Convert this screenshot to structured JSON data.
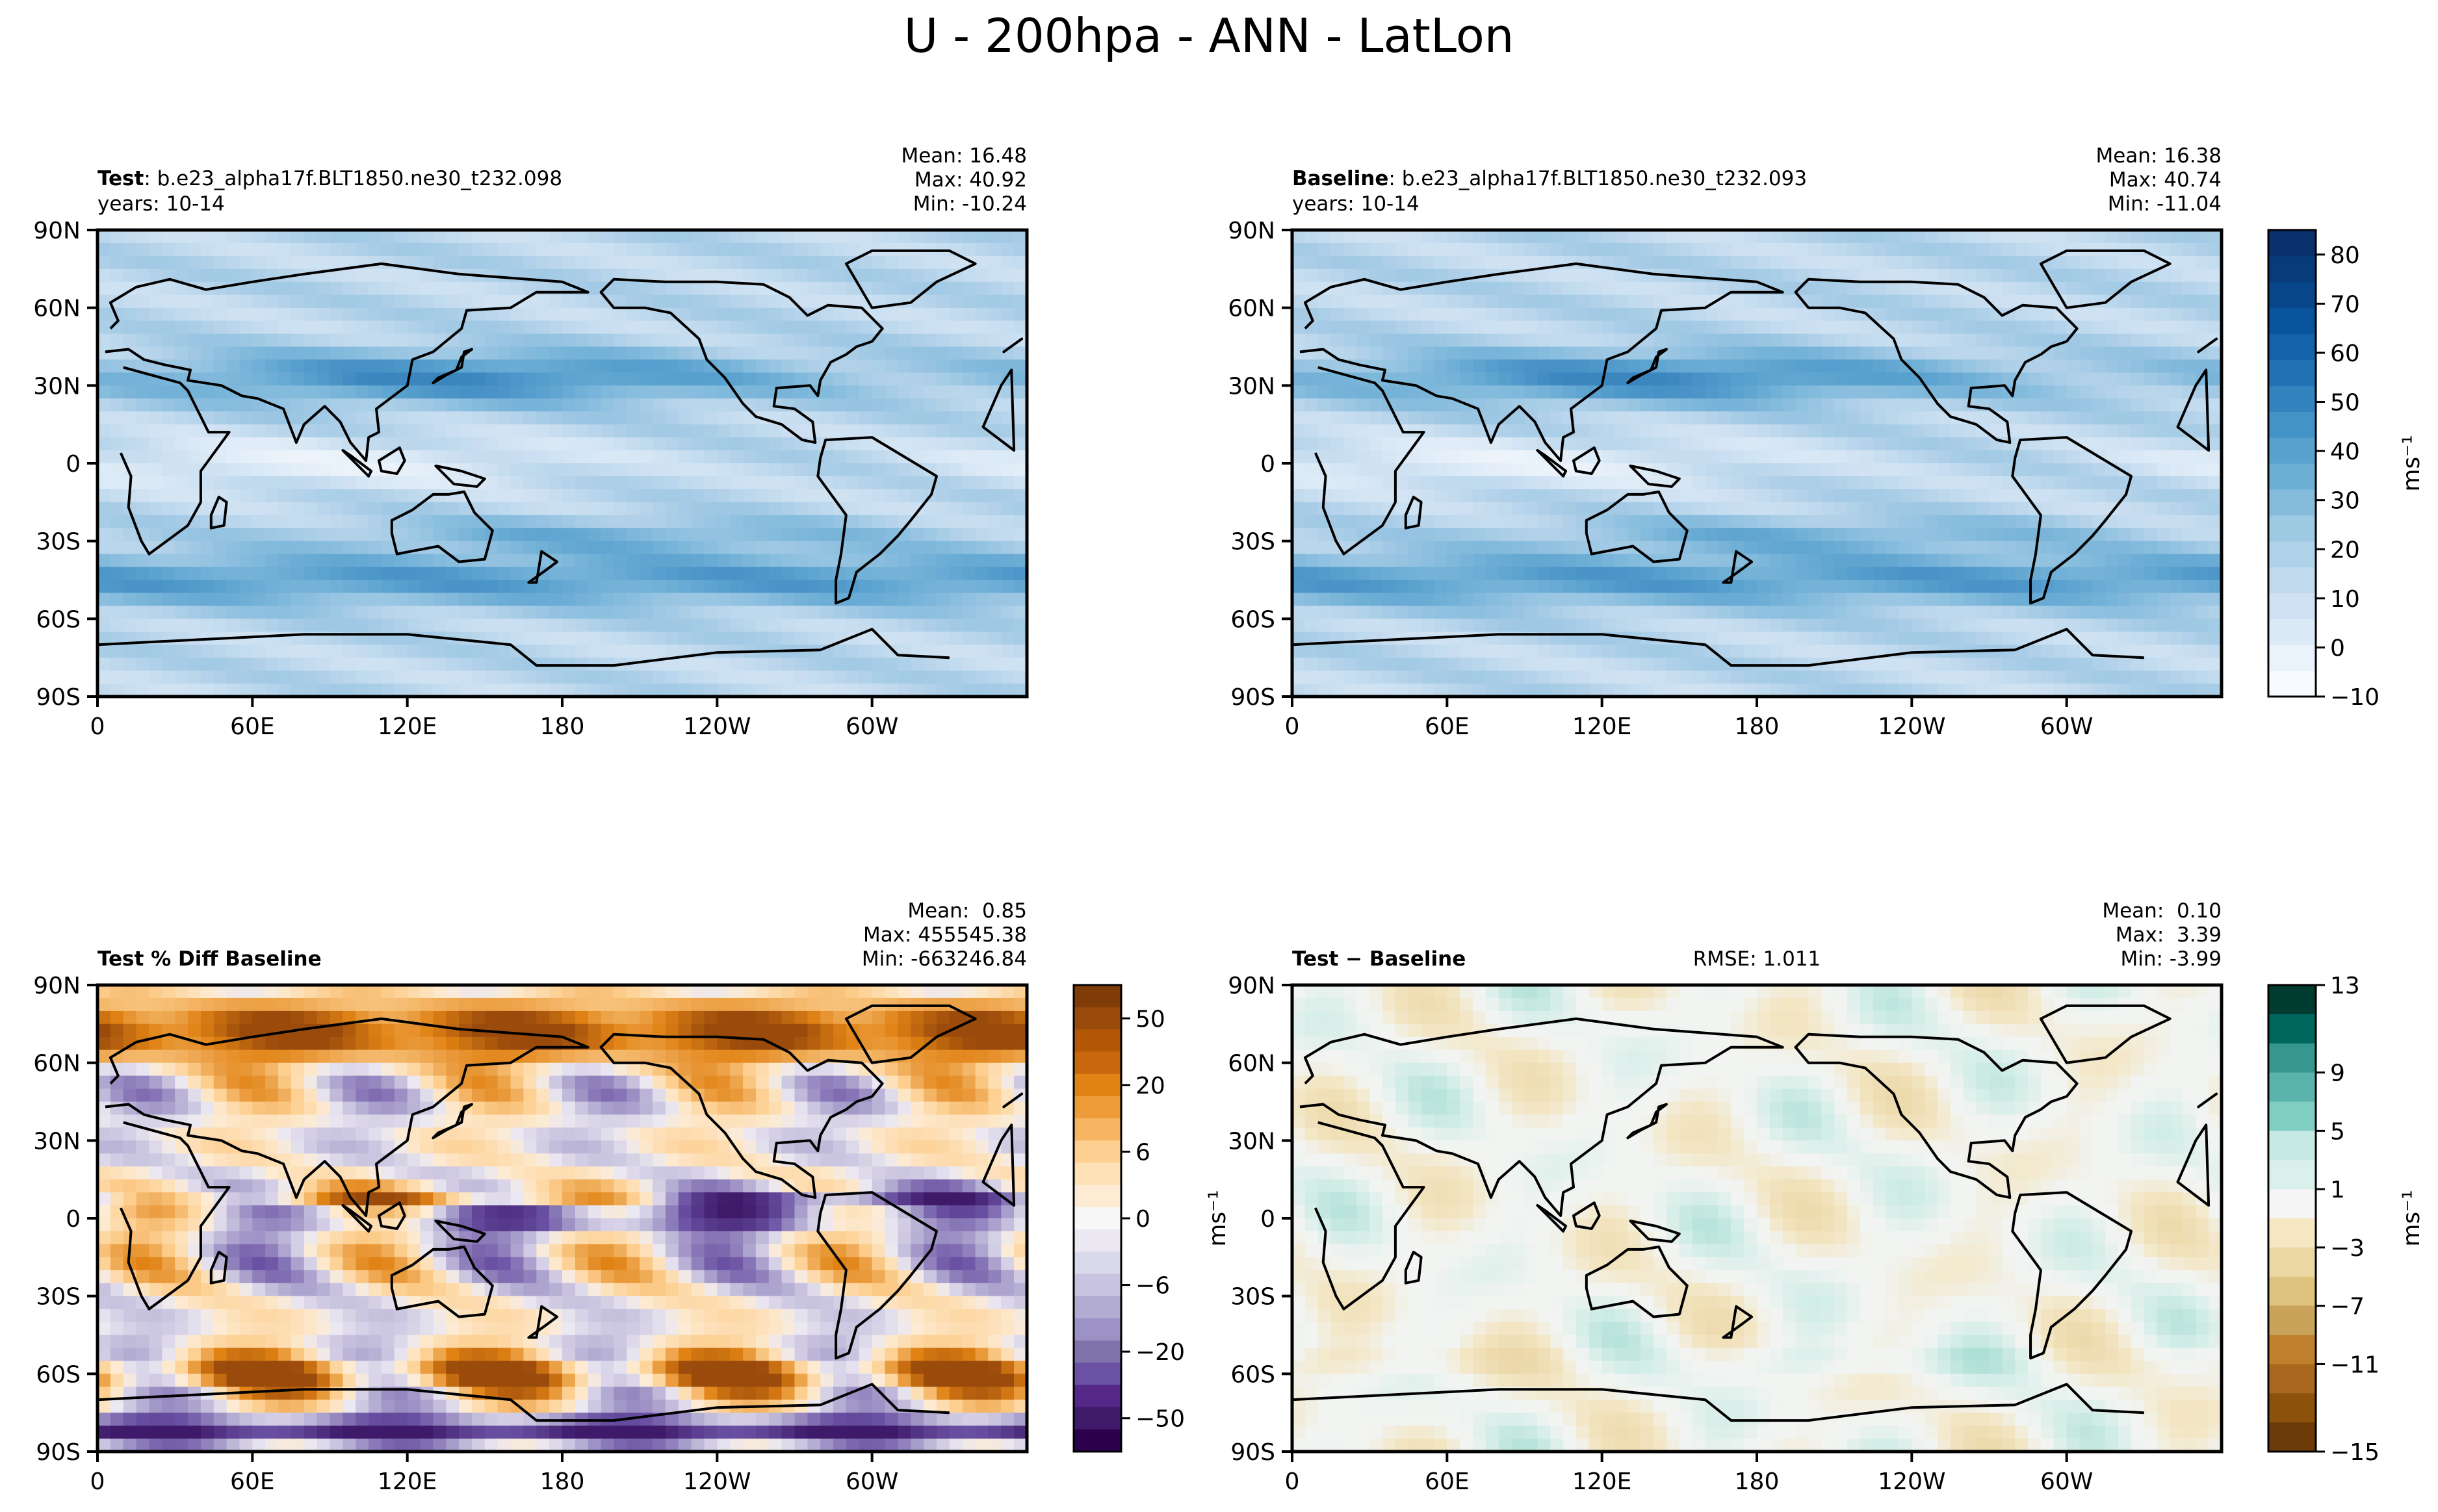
{
  "figure": {
    "title": "U - 200hpa - ANN - LatLon"
  },
  "chart_data": [
    {
      "type": "heatmap",
      "id": "test",
      "label_bold": "Test",
      "label_sep": ": ",
      "label_text": "b.e23_alpha17f.BLT1850.ne30_t232.098",
      "years": "years: 10-14",
      "stats": [
        "Mean: 16.48",
        "Max: 40.92",
        "Min: -10.24"
      ],
      "x_ticks": [
        "0",
        "60E",
        "120E",
        "180",
        "120W",
        "60W"
      ],
      "y_ticks": [
        "90N",
        "60N",
        "30N",
        "0",
        "30S",
        "60S",
        "90S"
      ],
      "xlim": [
        0,
        360
      ],
      "ylim": [
        -90,
        90
      ],
      "colormap": "Blues",
      "field": "wind"
    },
    {
      "type": "heatmap",
      "id": "baseline",
      "label_bold": "Baseline",
      "label_sep": ": ",
      "label_text": "b.e23_alpha17f.BLT1850.ne30_t232.093",
      "years": "years: 10-14",
      "stats": [
        "Mean: 16.38",
        "Max: 40.74",
        "Min: -11.04"
      ],
      "x_ticks": [
        "0",
        "60E",
        "120E",
        "180",
        "120W",
        "60W"
      ],
      "y_ticks": [
        "90N",
        "60N",
        "30N",
        "0",
        "30S",
        "60S",
        "90S"
      ],
      "xlim": [
        0,
        360
      ],
      "ylim": [
        -90,
        90
      ],
      "colormap": "Blues",
      "field": "wind"
    },
    {
      "type": "heatmap",
      "id": "pctdiff",
      "label_bold": "Test % Diff Baseline",
      "label_sep": "",
      "label_text": "",
      "stats": [
        "Mean:  0.85",
        "Max: 455545.38",
        "Min: -663246.84"
      ],
      "x_ticks": [
        "0",
        "60E",
        "120E",
        "180",
        "120W",
        "60W"
      ],
      "y_ticks": [
        "90N",
        "60N",
        "30N",
        "0",
        "30S",
        "60S",
        "90S"
      ],
      "xlim": [
        0,
        360
      ],
      "ylim": [
        -90,
        90
      ],
      "colormap": "PuOr",
      "field": "pct"
    },
    {
      "type": "heatmap",
      "id": "diff",
      "label_bold": "Test − Baseline",
      "label_sep": "",
      "label_text": "",
      "rmse": "RMSE: 1.011",
      "stats": [
        "Mean:  0.10",
        "Max:  3.39",
        "Min: -3.99"
      ],
      "x_ticks": [
        "0",
        "60E",
        "120E",
        "180",
        "120W",
        "60W"
      ],
      "y_ticks": [
        "90N",
        "60N",
        "30N",
        "0",
        "30S",
        "60S",
        "90S"
      ],
      "xlim": [
        0,
        360
      ],
      "ylim": [
        -90,
        90
      ],
      "colormap": "BrBG",
      "field": "diff"
    }
  ],
  "colorbars": [
    {
      "id": "cb-main",
      "unit_label": "ms⁻¹",
      "range": [
        -10,
        85
      ],
      "tick_values": [
        -10,
        0,
        10,
        20,
        30,
        40,
        50,
        60,
        70,
        80
      ],
      "tick_labels": [
        "−10",
        "0",
        "10",
        "20",
        "30",
        "40",
        "50",
        "60",
        "70",
        "80"
      ],
      "colors": [
        "#f7fbff",
        "#eaf2fb",
        "#dce9f6",
        "#cfe1f2",
        "#c1d9ed",
        "#b0d2e8",
        "#9dc9e2",
        "#85bcdc",
        "#6daed5",
        "#59a1cf",
        "#4493c7",
        "#3283be",
        "#2271b5",
        "#1563aa",
        "#0a549e",
        "#08468a",
        "#083b7a",
        "#08306b"
      ]
    },
    {
      "id": "cb-pct",
      "unit_label": "ms⁻¹",
      "tick_labels": [
        "50",
        "20",
        "6",
        "0",
        "−6",
        "−20",
        "−50"
      ],
      "colors": [
        "#7f3b08",
        "#9a4a0b",
        "#b35806",
        "#c9670f",
        "#e08214",
        "#ee9b3a",
        "#f7b563",
        "#fdcf90",
        "#fee0b6",
        "#fdebd3",
        "#f7f7f7",
        "#ebe8f2",
        "#d8daeb",
        "#c7c3e0",
        "#b2abd2",
        "#9d92c5",
        "#8073ac",
        "#6a51a3",
        "#542788",
        "#3f1a6b",
        "#2d004b"
      ]
    },
    {
      "id": "cb-diff",
      "unit_label": "ms⁻¹",
      "tick_labels": [
        "13",
        "9",
        "5",
        "1",
        "−3",
        "−7",
        "−11",
        "−15"
      ],
      "colors": [
        "#003c30",
        "#01665e",
        "#35978f",
        "#5ab4ac",
        "#80cdc1",
        "#c7eae5",
        "#d9f0ec",
        "#f5f5f5",
        "#f6e8c3",
        "#ecd8a5",
        "#dfc27d",
        "#c9a35a",
        "#bf812d",
        "#a8691f",
        "#8c510a",
        "#6b3c07"
      ]
    }
  ]
}
